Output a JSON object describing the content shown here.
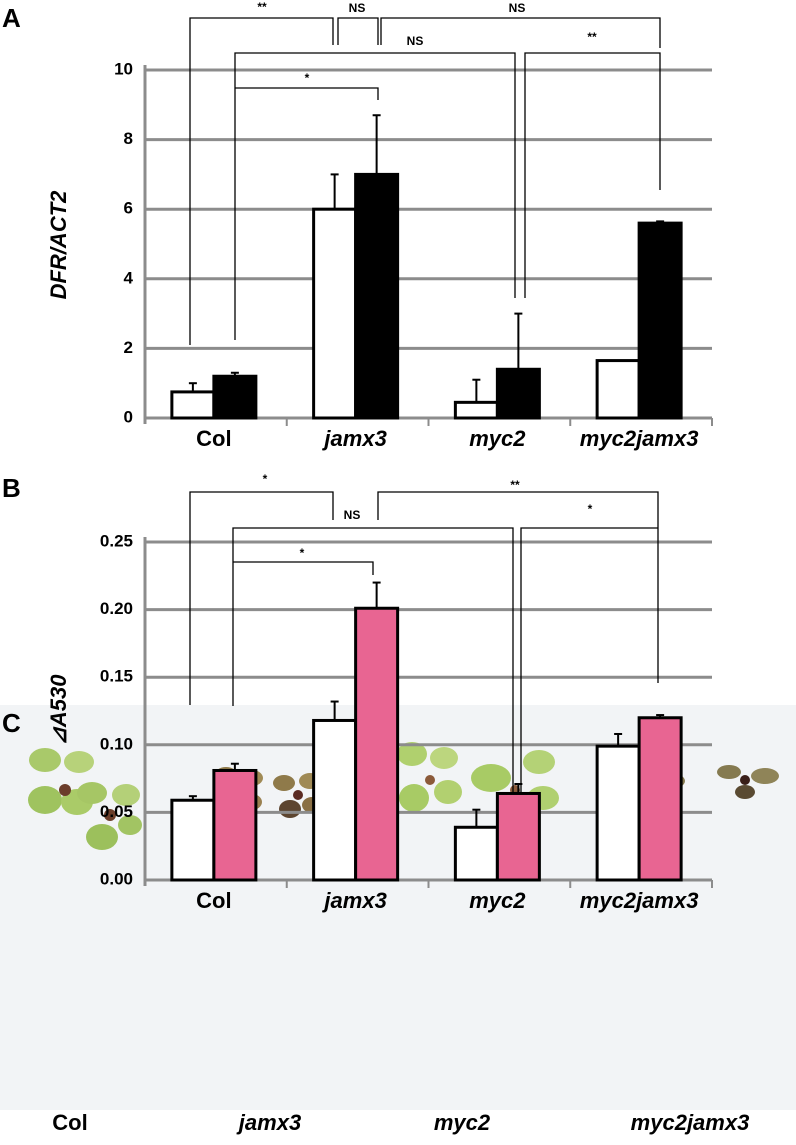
{
  "chart_data": [
    {
      "type": "bar",
      "panel_label": "A",
      "y_label": "DFR/ACT2",
      "categories": [
        "Col",
        "jamx3",
        "myc2",
        "myc2jamx3"
      ],
      "series": [
        {
          "color": "#ffffff",
          "values": [
            0.75,
            6.0,
            0.45,
            1.65
          ],
          "errors": [
            0.25,
            1.0,
            0.65,
            0
          ]
        },
        {
          "color": "#000000",
          "values": [
            1.2,
            7.0,
            1.4,
            5.6
          ],
          "errors": [
            0.1,
            1.7,
            1.6,
            0.05
          ]
        }
      ],
      "ylim": [
        0,
        10
      ],
      "yticks": [
        0,
        2,
        4,
        6,
        8,
        10
      ],
      "grid": true,
      "annotations": [
        {
          "text": "**"
        },
        {
          "text": "NS"
        },
        {
          "text": "NS"
        },
        {
          "text": "NS"
        },
        {
          "text": "**"
        },
        {
          "text": "*"
        }
      ]
    },
    {
      "type": "bar",
      "panel_label": "B",
      "y_label": "⊿A530",
      "categories": [
        "Col",
        "jamx3",
        "myc2",
        "myc2jamx3"
      ],
      "series": [
        {
          "color": "#ffffff",
          "values": [
            0.059,
            0.118,
            0.039,
            0.099
          ],
          "errors": [
            0.003,
            0.014,
            0.013,
            0.009
          ]
        },
        {
          "color": "#e86592",
          "values": [
            0.081,
            0.201,
            0.064,
            0.12
          ],
          "errors": [
            0.005,
            0.019,
            0.007,
            0.002
          ]
        }
      ],
      "ylim": [
        0,
        0.25
      ],
      "yticks": [
        {
          "value": 0,
          "label": "0.00"
        },
        {
          "value": 0.05,
          "label": "0.05"
        },
        {
          "value": 0.1,
          "label": "0.10"
        },
        {
          "value": 0.15,
          "label": "0.15"
        },
        {
          "value": 0.2,
          "label": "0.20"
        },
        {
          "value": 0.25,
          "label": "0.25"
        }
      ],
      "grid": true,
      "annotations": [
        {
          "text": "*"
        },
        {
          "text": "**"
        },
        {
          "text": "NS"
        },
        {
          "text": "*"
        },
        {
          "text": "*"
        }
      ]
    }
  ],
  "photo_panel": {
    "panel_label": "C",
    "labels": [
      "Col",
      "jamx3",
      "myc2",
      "myc2jamx3"
    ]
  }
}
